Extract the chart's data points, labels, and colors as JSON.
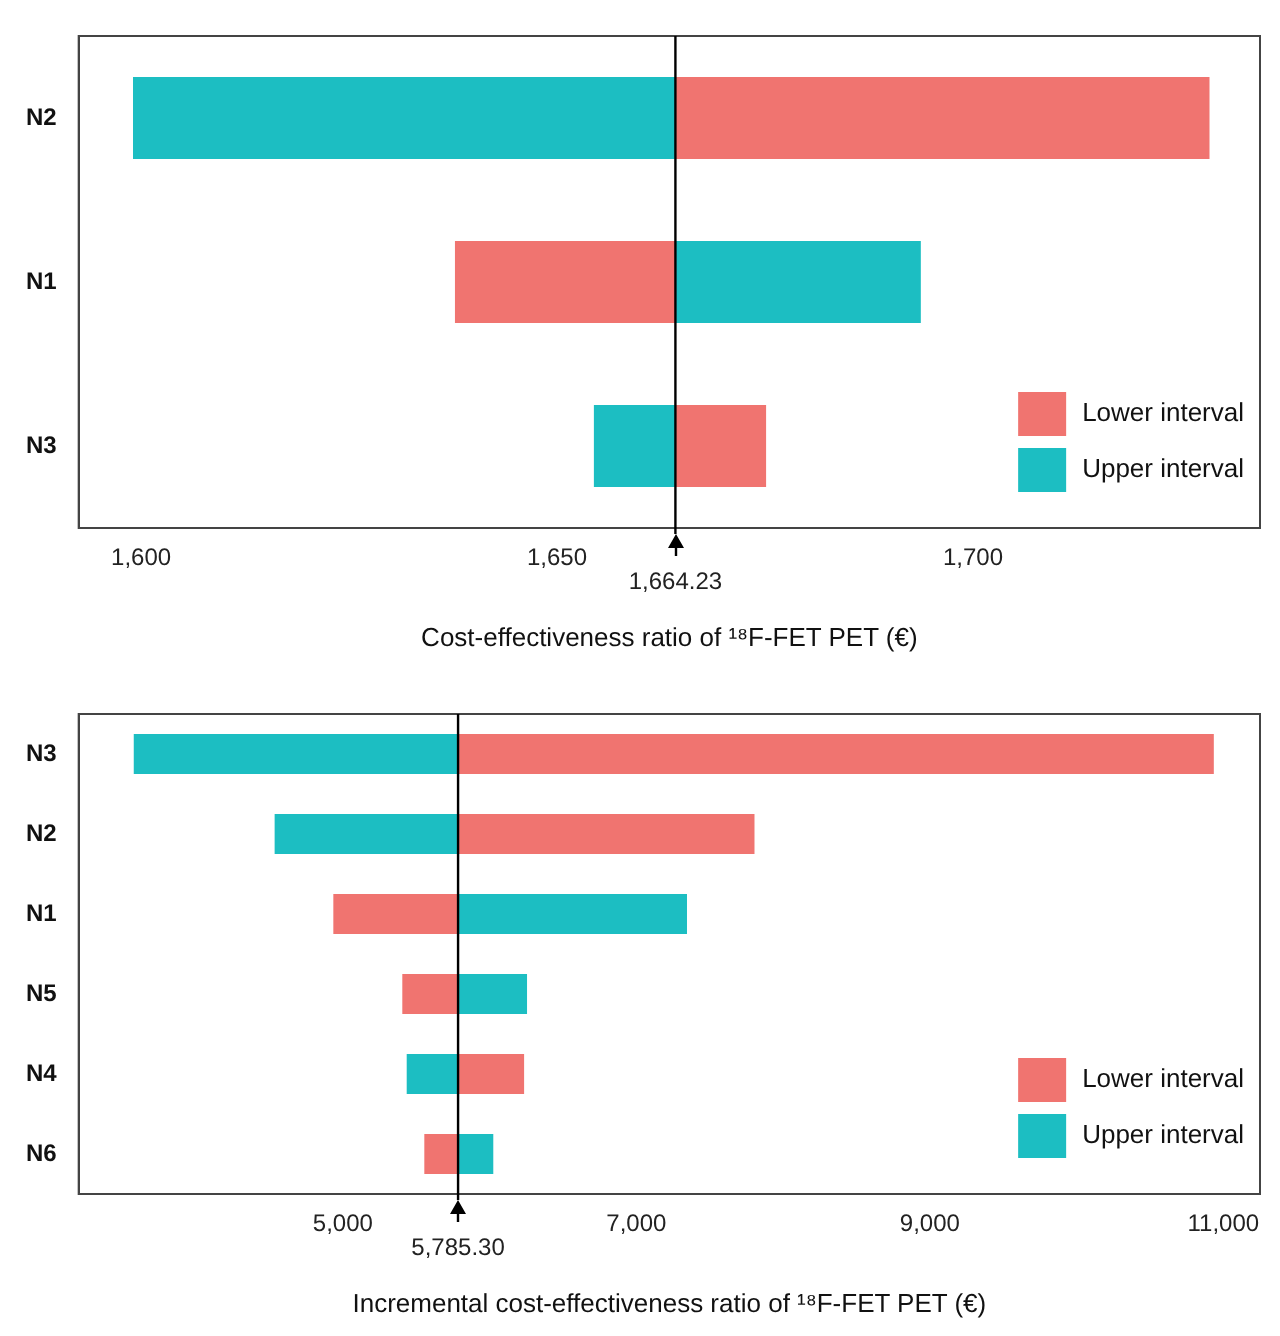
{
  "chart_data": [
    {
      "type": "bar",
      "orientation": "horizontal",
      "categories": [
        "N2",
        "N1",
        "N3"
      ],
      "series": [
        {
          "name": "Lower interval",
          "color": "#f07470",
          "base": [
            1664.23,
            1664.23,
            1664.23
          ],
          "values": [
            64.2,
            -26.5,
            10.9
          ]
        },
        {
          "name": "Upper interval",
          "color": "#1cbec2",
          "base": [
            1664.23,
            1664.23,
            1664.23
          ],
          "values": [
            -65.2,
            29.5,
            -9.8
          ]
        }
      ],
      "xlim": [
        1592.5,
        1734.5
      ],
      "xticks": [
        {
          "value": 1600,
          "label": "1,600"
        },
        {
          "value": 1650,
          "label": "1,650"
        },
        {
          "value": 1700,
          "label": "1,700"
        }
      ],
      "xlabel": "Cost-effectiveness ratio of ¹⁸F-FET PET (€)",
      "ref_lines": [
        {
          "axis": "x",
          "value": 1664.23,
          "label": "1,664.23"
        }
      ],
      "legend": "bottom right",
      "grid": false
    },
    {
      "type": "bar",
      "orientation": "horizontal",
      "categories": [
        "N3",
        "N2",
        "N1",
        "N5",
        "N4",
        "N6"
      ],
      "series": [
        {
          "name": "Lower interval",
          "color": "#f07470",
          "base": [
            5785.3,
            5785.3,
            5785.3,
            5785.3,
            5785.3,
            5785.3
          ],
          "values": [
            5150,
            2020,
            -850,
            -380,
            450,
            -230
          ]
        },
        {
          "name": "Upper interval",
          "color": "#1cbec2",
          "base": [
            5785.3,
            5785.3,
            5785.3,
            5785.3,
            5785.3,
            5785.3
          ],
          "values": [
            -2210,
            -1250,
            1560,
            470,
            -350,
            240
          ]
        }
      ],
      "xlim": [
        3200,
        11250
      ],
      "xticks": [
        {
          "value": 5000,
          "label": "5,000"
        },
        {
          "value": 7000,
          "label": "7,000"
        },
        {
          "value": 9000,
          "label": "9,000"
        },
        {
          "value": 11000,
          "label": "11,000"
        }
      ],
      "xlabel": "Incremental cost-effectiveness ratio of ¹⁸F-FET PET (€)",
      "ref_lines": [
        {
          "axis": "x",
          "value": 5785.3,
          "label": "5,785.30"
        }
      ],
      "legend": "bottom right",
      "grid": false
    }
  ]
}
